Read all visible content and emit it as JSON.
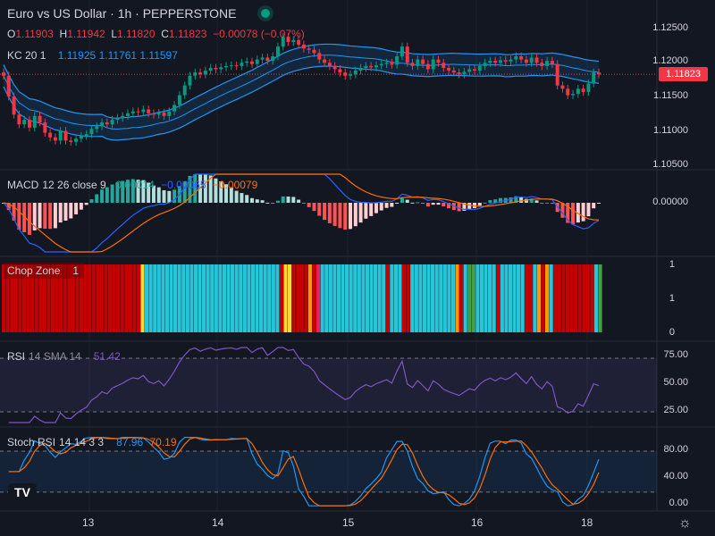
{
  "header": {
    "title": "Euro vs US Dollar · 1h · PEPPERSTONE",
    "ohlc": [
      {
        "k": "O",
        "v": "1.11903"
      },
      {
        "k": "H",
        "v": "1.11942"
      },
      {
        "k": "L",
        "v": "1.11820"
      },
      {
        "k": "C",
        "v": "1.11823"
      },
      {
        "k": "",
        "v": "−0.00078 (−0.07%)"
      }
    ],
    "kc": {
      "name": "KC",
      "params": "20 1",
      "upper": "1.11925",
      "basis": "1.11761",
      "lower": "1.11597"
    },
    "last_price": "1.11823"
  },
  "panes": {
    "macd": {
      "name": "MACD",
      "params": "12 26 close 9",
      "hist": "0.00014",
      "macd": "−0.00065",
      "signal": "−0.00079"
    },
    "chop": {
      "name": "Chop Zone",
      "value": "1"
    },
    "rsi": {
      "name": "RSI",
      "params": "14 SMA 14",
      "value": "51.42"
    },
    "stoch": {
      "name": "Stoch RSI",
      "params": "14 14 3 3",
      "k": "87.96",
      "d": "70.19"
    }
  },
  "colors": {
    "up": "#089981",
    "down": "#f23645",
    "kc": "#2196f3",
    "macd": "#2962ff",
    "signal": "#ff6d00",
    "rsi": "#7e57c2",
    "chop_red": "#c70000",
    "chop_cyan": "#26c6da",
    "chop_yellow": "#fdd835",
    "chop_orange": "#ff9800",
    "chop_green": "#43a047",
    "chop_pink": "#e91e63"
  },
  "chart_data": [
    {
      "type": "candlestick",
      "title": "Euro vs US Dollar · 1h · PEPPERSTONE",
      "y_ticks": [
        "1.12500",
        "1.12000",
        "1.11500",
        "1.11000",
        "1.10500"
      ],
      "ylim": [
        1.1035,
        1.1272
      ],
      "x_ticks": [
        "13",
        "14",
        "15",
        "16",
        "18"
      ],
      "candles_close": [
        1.118,
        1.1148,
        1.112,
        1.1105,
        1.1112,
        1.11,
        1.1118,
        1.1108,
        1.1092,
        1.1085,
        1.108,
        1.1095,
        1.108,
        1.1078,
        1.1083,
        1.1087,
        1.109,
        1.1098,
        1.1102,
        1.1108,
        1.1105,
        1.1112,
        1.1115,
        1.1118,
        1.1122,
        1.1125,
        1.1124,
        1.1128,
        1.1122,
        1.112,
        1.1123,
        1.1118,
        1.1125,
        1.1135,
        1.115,
        1.1165,
        1.118,
        1.1185,
        1.1182,
        1.1188,
        1.1192,
        1.119,
        1.1193,
        1.1195,
        1.1196,
        1.1195,
        1.12,
        1.1202,
        1.1198,
        1.1205,
        1.1208,
        1.1203,
        1.121,
        1.1225,
        1.124,
        1.1232,
        1.1235,
        1.1228,
        1.1222,
        1.122,
        1.1215,
        1.1205,
        1.12,
        1.1195,
        1.119,
        1.1185,
        1.118,
        1.1182,
        1.1188,
        1.1192,
        1.1195,
        1.1193,
        1.1196,
        1.1198,
        1.12,
        1.1197,
        1.121,
        1.1225,
        1.12,
        1.1195,
        1.1205,
        1.1198,
        1.119,
        1.1205,
        1.12,
        1.1192,
        1.1188,
        1.1185,
        1.1182,
        1.1186,
        1.119,
        1.1188,
        1.1195,
        1.12,
        1.1203,
        1.12,
        1.1204,
        1.1202,
        1.1205,
        1.121,
        1.1205,
        1.12,
        1.1208,
        1.12,
        1.1195,
        1.1203,
        1.1198,
        1.1165,
        1.116,
        1.115,
        1.1152,
        1.116,
        1.1155,
        1.1168,
        1.1185,
        1.1182
      ],
      "kc": {
        "upper": "1.11925",
        "basis": "1.11761",
        "lower": "1.11597"
      }
    },
    {
      "type": "bar",
      "title": "MACD 12 26 close 9",
      "y_ticks": [
        "0.00000"
      ],
      "series": [
        {
          "name": "MACD",
          "values": []
        },
        {
          "name": "Signal",
          "values": []
        }
      ]
    },
    {
      "type": "bar",
      "title": "Chop Zone",
      "y_ticks": [
        "1",
        "1",
        "0"
      ],
      "zones": [
        "r",
        "r",
        "r",
        "r",
        "r",
        "r",
        "r",
        "r",
        "r",
        "r",
        "r",
        "r",
        "r",
        "r",
        "r",
        "r",
        "r",
        "r",
        "r",
        "r",
        "r",
        "r",
        "r",
        "r",
        "r",
        "r",
        "r",
        "r",
        "r",
        "r",
        "r",
        "r",
        "r",
        "r",
        "y",
        "c",
        "c",
        "c",
        "c",
        "c",
        "c",
        "c",
        "c",
        "c",
        "c",
        "c",
        "c",
        "c",
        "c",
        "c",
        "c",
        "c",
        "c",
        "c",
        "c",
        "c",
        "c",
        "c",
        "c",
        "c",
        "c",
        "c",
        "c",
        "c",
        "c",
        "c",
        "c",
        "c",
        "r",
        "y",
        "y",
        "r",
        "r",
        "r",
        "r",
        "o",
        "r",
        "p",
        "c",
        "c",
        "c",
        "c",
        "c",
        "c",
        "c",
        "c",
        "c",
        "c",
        "c",
        "c",
        "c",
        "c",
        "c",
        "c",
        "r",
        "c",
        "c",
        "c",
        "r",
        "r",
        "c",
        "c",
        "c",
        "c",
        "c",
        "c",
        "c",
        "c",
        "c",
        "c",
        "c",
        "o",
        "r",
        "c",
        "g",
        "g",
        "c",
        "c",
        "c",
        "c",
        "c",
        "r",
        "c",
        "c",
        "c",
        "c",
        "c",
        "c",
        "r",
        "r",
        "c",
        "o",
        "r",
        "o",
        "c",
        "r",
        "r",
        "r",
        "r",
        "r",
        "r",
        "r",
        "r",
        "r",
        "r",
        "c",
        "g"
      ]
    },
    {
      "type": "line",
      "title": "RSI 14 SMA 14",
      "y_ticks": [
        "75.00",
        "50.00",
        "25.00"
      ],
      "ylim": [
        20,
        80
      ]
    },
    {
      "type": "line",
      "title": "Stoch RSI 14 14 3 3",
      "y_ticks": [
        "80.00",
        "40.00",
        "0.00"
      ],
      "ylim": [
        -5,
        110
      ]
    }
  ]
}
